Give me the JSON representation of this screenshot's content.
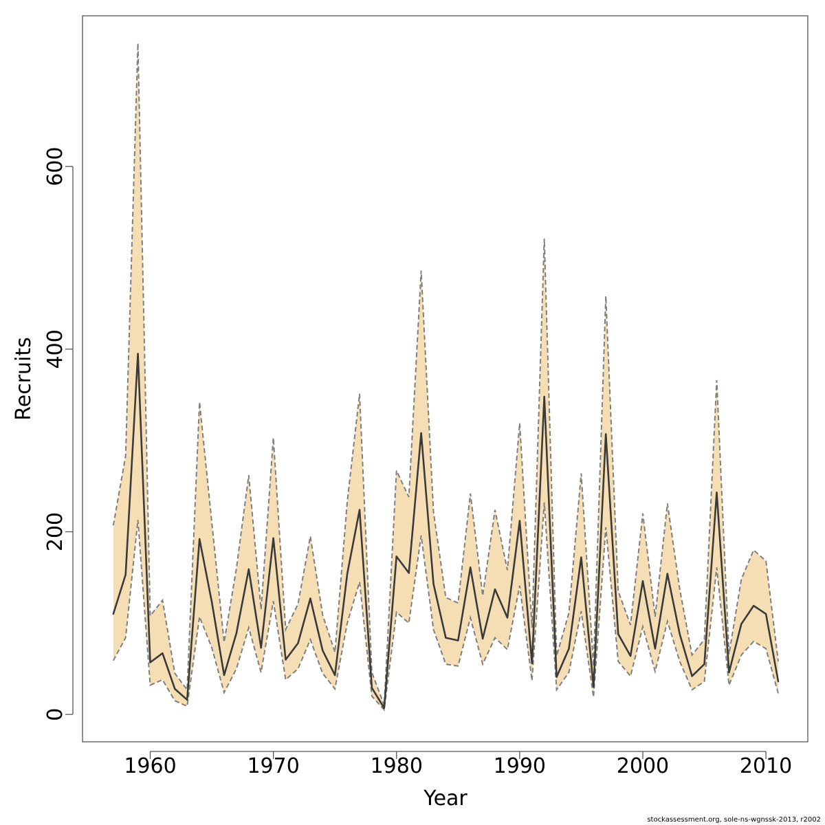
{
  "chart_data": {
    "type": "line",
    "title": "",
    "xlabel": "Year",
    "ylabel": "Recruits",
    "xlim": [
      1954.5,
      2013.4
    ],
    "ylim": [
      -30,
      765
    ],
    "x_ticks": [
      1960,
      1970,
      1980,
      1990,
      2000,
      2010
    ],
    "y_ticks": [
      0,
      200,
      400,
      600
    ],
    "grid": false,
    "colors": {
      "band": "#F5DEB3",
      "bound_line": "#7f7f7f",
      "estimate_line": "#3a3a3a"
    },
    "x": [
      1957,
      1958,
      1959,
      1960,
      1961,
      1962,
      1963,
      1964,
      1965,
      1966,
      1967,
      1968,
      1969,
      1970,
      1971,
      1972,
      1973,
      1974,
      1975,
      1976,
      1977,
      1978,
      1979,
      1980,
      1981,
      1982,
      1983,
      1984,
      1985,
      1986,
      1987,
      1988,
      1989,
      1990,
      1991,
      1992,
      1993,
      1994,
      1995,
      1996,
      1997,
      1998,
      1999,
      2000,
      2001,
      2002,
      2003,
      2004,
      2005,
      2006,
      2007,
      2008,
      2009,
      2010,
      2011
    ],
    "series": [
      {
        "role": "estimate",
        "values": [
          110,
          153,
          395,
          57,
          67,
          28,
          16,
          192,
          123,
          43,
          89,
          159,
          73,
          193,
          60,
          78,
          127,
          70,
          43,
          154,
          224,
          29,
          7,
          173,
          155,
          308,
          143,
          84,
          81,
          161,
          83,
          137,
          106,
          212,
          56,
          348,
          41,
          72,
          172,
          30,
          307,
          88,
          64,
          146,
          72,
          154,
          88,
          42,
          55,
          243,
          46,
          99,
          119,
          110,
          36
        ]
      },
      {
        "role": "upper",
        "values": [
          207,
          283,
          735,
          108,
          125,
          45,
          27,
          342,
          210,
          79,
          160,
          262,
          115,
          303,
          93,
          121,
          195,
          109,
          68,
          233,
          351,
          46,
          10,
          267,
          238,
          486,
          222,
          128,
          122,
          242,
          130,
          224,
          158,
          319,
          95,
          521,
          64,
          111,
          264,
          53,
          458,
          135,
          98,
          220,
          107,
          231,
          137,
          65,
          82,
          366,
          66,
          148,
          180,
          168,
          58
        ]
      },
      {
        "role": "lower",
        "values": [
          59,
          84,
          213,
          32,
          38,
          15,
          9,
          107,
          73,
          24,
          50,
          95,
          46,
          124,
          38,
          50,
          82,
          45,
          28,
          100,
          145,
          20,
          5,
          112,
          100,
          196,
          93,
          55,
          53,
          106,
          55,
          84,
          71,
          141,
          37,
          232,
          27,
          46,
          113,
          19,
          205,
          58,
          42,
          96,
          47,
          102,
          58,
          27,
          36,
          161,
          32,
          65,
          80,
          72,
          23
        ]
      }
    ]
  },
  "footer_text": "stockassessment.org, sole-ns-wgnssk-2013, r2002"
}
